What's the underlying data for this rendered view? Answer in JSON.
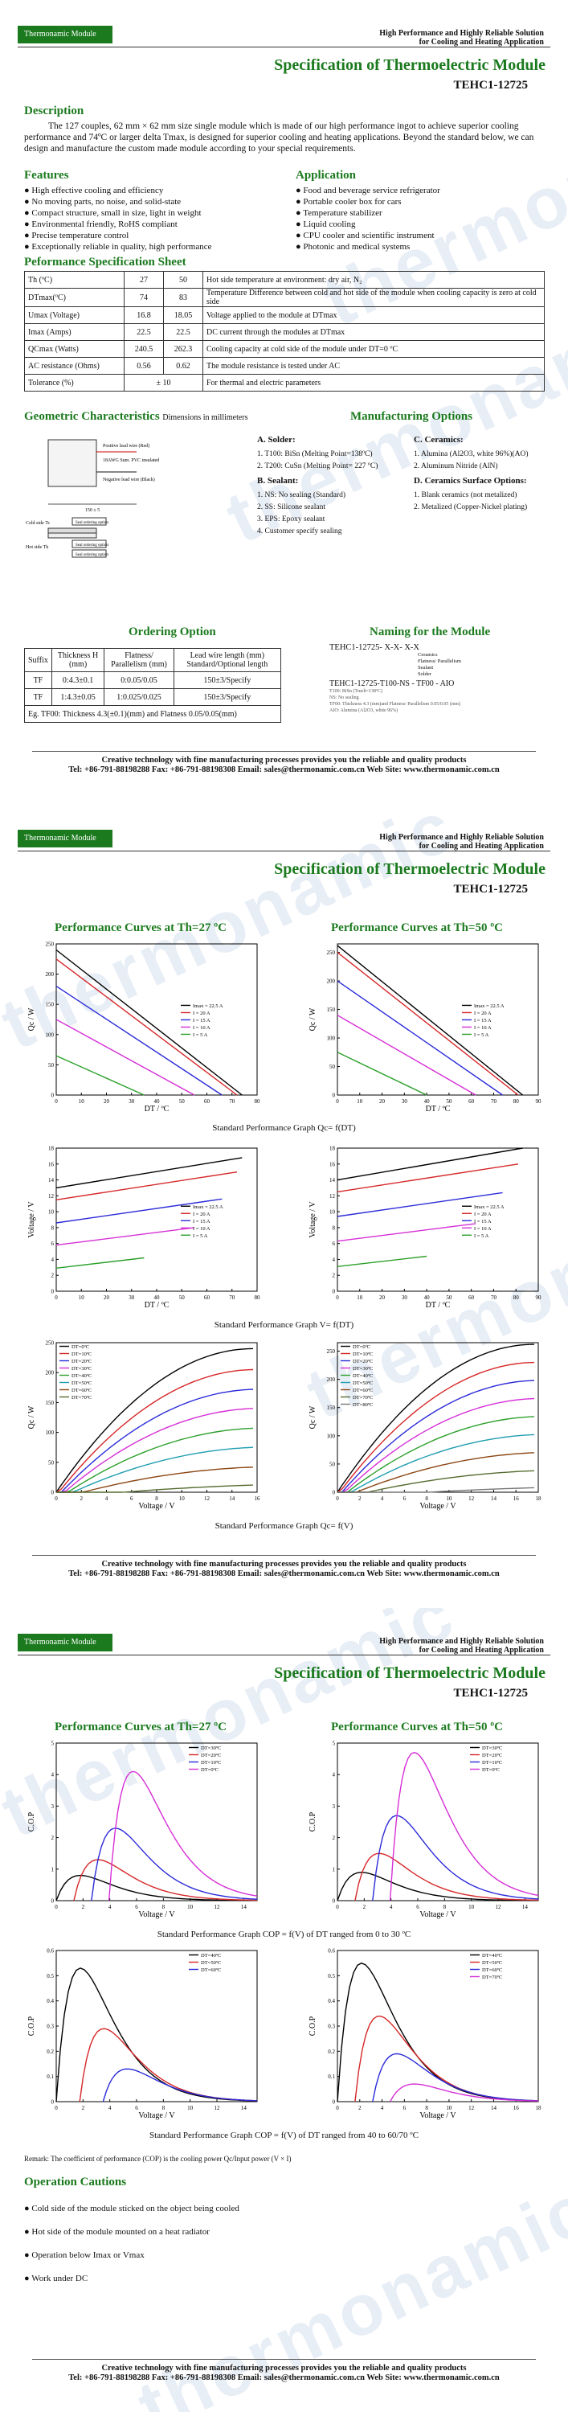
{
  "header": {
    "logo": "Thermonamic Module",
    "hp_line1": "High Performance and Highly Reliable Solution",
    "hp_line2": "for Cooling and Heating Application",
    "title": "Specification of Thermoelectric Module",
    "model": "TEHC1-12725",
    "watermark": "thermonamic"
  },
  "description": {
    "heading": "Description",
    "text": "The 127 couples, 62 mm × 62 mm size single module which is made of our high performance ingot to achieve superior cooling performance and 74ºC or larger delta Tmax, is designed for superior cooling and heating applications. Beyond the standard below, we can design and manufacture the custom made module according to your special requirements."
  },
  "features": {
    "heading": "Features",
    "items": [
      "High effective cooling and efficiency",
      "No moving parts, no noise, and solid-state",
      "Compact structure, small in size, light in weight",
      "Environmental friendly, RoHS compliant",
      "Precise temperature control",
      "Exceptionally reliable in quality, high performance"
    ]
  },
  "application": {
    "heading": "Application",
    "items": [
      "Food and beverage service refrigerator",
      "Portable cooler box for cars",
      "Temperature stabilizer",
      "Liquid cooling",
      "CPU cooler and scientific instrument",
      "Photonic and medical systems"
    ]
  },
  "perf_table": {
    "heading": "Peformance Specification Sheet",
    "rows": [
      [
        "Th (ºC)",
        "27",
        "50",
        "Hot side temperature at environment: dry air, N₂"
      ],
      [
        "DTmax(ºC)",
        "74",
        "83",
        "Temperature Difference between cold and hot side of the module when cooling capacity is zero at cold side"
      ],
      [
        "Umax (Voltage)",
        "16.8",
        "18.05",
        "Voltage applied to the module at DTmax"
      ],
      [
        "Imax (Amps)",
        "22.5",
        "22.5",
        "DC current through the modules at DTmax"
      ],
      [
        "QCmax (Watts)",
        "240.5",
        "262.3",
        "Cooling capacity at cold side of the module under DT=0 ºC"
      ],
      [
        "AC resistance (Ohms)",
        "0.56",
        "0.62",
        "The module resistance is tested under AC"
      ],
      [
        "Tolerance (%)",
        "± 10",
        "",
        "For thermal and electric parameters"
      ]
    ]
  },
  "geometry": {
    "heading": "Geometric Characteristics",
    "sub": "Dimensions in millimeters",
    "labels": [
      "Positive lead wire (Red)",
      "18AWG Sum. PVC insulated",
      "Negative lead wire (Black)",
      "150 ± 5",
      "Cold side Tc",
      "Hot side Th",
      "Seal ordering option"
    ]
  },
  "manufacturing": {
    "heading": "Manufacturing Options",
    "solder_head": "A. Solder:",
    "solder": [
      "1. T100: BiSn (Melting Point=138ºC)",
      "2. T200: CuSn (Melting Point= 227 ºC)"
    ],
    "sealant_head": "B. Sealant:",
    "sealant": [
      "1. NS: No sealing (Standard)",
      "2. SS: Silicone sealant",
      "3. EPS: Epoxy sealant",
      "4. Customer specify sealing"
    ],
    "ceramic_head": "C. Ceramics:",
    "ceramic": [
      "1. Alumina (Al2O3, white 96%)(AO)",
      "2. Aluminum Nitride (AlN)"
    ],
    "surface_head": "D. Ceramics Surface Options:",
    "surface": [
      "1. Blank ceramics (not metalized)",
      "2. Metalized (Copper-Nickel plating)"
    ]
  },
  "ordering": {
    "heading": "Ordering Option",
    "cols": [
      "Suffix",
      "Thickness H (mm)",
      "Flatness/ Parallelism (mm)",
      "Lead wire length (mm) Standard/Optional length"
    ],
    "rows": [
      [
        "TF",
        "0:4.3±0.1",
        "0:0.05/0.05",
        "150±3/Specify"
      ],
      [
        "TF",
        "1:4.3±0.05",
        "1:0.025/0.025",
        "150±3/Specify"
      ]
    ],
    "note": "Eg. TF00: Thickness 4.3(±0.1)(mm) and Flatness 0.05/0.05(mm)"
  },
  "naming": {
    "heading": "Naming for the Module",
    "code": "TEHC1-12725- X-X- X-X",
    "parts": [
      "Ceramics",
      "Flatness/ Parallelism",
      "Sealant",
      "Solder"
    ],
    "example": "TEHC1-12725-T100-NS - TF00 - AIO",
    "ex_lines": [
      "T100: BiSn (Tmelt=138ºC)",
      "NS: No sealing",
      "TF00: Thickness 4.3 (mm)and Flatness/ Parallelism 0.05/0.05 (mm)",
      "AIO: Alumina (Al2O3, white 96%)"
    ]
  },
  "footer": {
    "line1": "Creative technology with fine manufacturing processes provides you the reliable and quality products",
    "line2": "Tel: +86-791-88198288    Fax: +86-791-88198308    Email: sales@thermonamic.com.cn    Web Site: www.thermonamic.com.cn"
  },
  "page2": {
    "title_left": "Performance Curves at Th=27 ºC",
    "title_right": "Performance Curves at Th=50 ºC",
    "cap1": "Standard Performance Graph Qc= f(DT)",
    "cap2": "Standard Performance Graph V= f(DT)",
    "cap3": "Standard Performance Graph Qc= f(V)"
  },
  "page3": {
    "title_left": "Performance Curves at Th=27 ºC",
    "title_right": "Performance Curves at Th=50 ºC",
    "cap1": "Standard Performance Graph COP = f(V) of DT ranged from 0 to 30 ºC",
    "cap2": "Standard Performance Graph COP = f(V) of DT ranged from 40 to 60/70 ºC",
    "remark": "Remark: The coefficient of performance (COP) is the cooling power Qc/Input power (V × I)",
    "cautions_heading": "Operation Cautions",
    "cautions": [
      "Cold side of the module sticked on the object being cooled",
      "Hot side of the module mounted on a heat radiator",
      "Operation below Imax or Vmax",
      "Work under DC"
    ]
  },
  "chart_data": [
    {
      "type": "line",
      "title": "Qc vs DT, Th=27",
      "xlabel": "DT / ºC",
      "ylabel": "Qc / W",
      "xlim": [
        0,
        80
      ],
      "ylim": [
        0,
        250
      ],
      "series": [
        {
          "name": "Imax = 22.5 A",
          "x": [
            0,
            74
          ],
          "values": [
            240,
            0
          ]
        },
        {
          "name": "I = 20 A",
          "x": [
            0,
            72
          ],
          "values": [
            225,
            0
          ]
        },
        {
          "name": "I = 15 A",
          "x": [
            0,
            66
          ],
          "values": [
            180,
            0
          ]
        },
        {
          "name": "I = 10 A",
          "x": [
            0,
            55
          ],
          "values": [
            125,
            0
          ]
        },
        {
          "name": "I = 5 A",
          "x": [
            0,
            35
          ],
          "values": [
            65,
            0
          ]
        }
      ]
    },
    {
      "type": "line",
      "title": "Qc vs DT, Th=50",
      "xlabel": "DT / ºC",
      "ylabel": "Qc / W",
      "xlim": [
        0,
        90
      ],
      "ylim": [
        0,
        265
      ],
      "series": [
        {
          "name": "Imax = 22.5 A",
          "x": [
            0,
            83
          ],
          "values": [
            262,
            0
          ]
        },
        {
          "name": "I = 20 A",
          "x": [
            0,
            81
          ],
          "values": [
            250,
            0
          ]
        },
        {
          "name": "I = 15 A",
          "x": [
            0,
            74
          ],
          "values": [
            200,
            0
          ]
        },
        {
          "name": "I = 10 A",
          "x": [
            0,
            62
          ],
          "values": [
            140,
            0
          ]
        },
        {
          "name": "I = 5 A",
          "x": [
            0,
            40
          ],
          "values": [
            75,
            0
          ]
        }
      ]
    },
    {
      "type": "line",
      "title": "V vs DT, Th=27",
      "xlabel": "DT / ºC",
      "ylabel": "Voltage / V",
      "xlim": [
        0,
        80
      ],
      "ylim": [
        0,
        18
      ],
      "series": [
        {
          "name": "Imax = 22.5 A",
          "x": [
            0,
            74
          ],
          "values": [
            13,
            16.8
          ]
        },
        {
          "name": "I = 20 A",
          "x": [
            0,
            72
          ],
          "values": [
            11.5,
            15
          ]
        },
        {
          "name": "I = 15 A",
          "x": [
            0,
            66
          ],
          "values": [
            8.6,
            11.6
          ]
        },
        {
          "name": "I = 10 A",
          "x": [
            0,
            55
          ],
          "values": [
            5.8,
            8
          ]
        },
        {
          "name": "I = 5 A",
          "x": [
            0,
            35
          ],
          "values": [
            2.9,
            4.2
          ]
        }
      ]
    },
    {
      "type": "line",
      "title": "V vs DT, Th=50",
      "xlabel": "DT / ºC",
      "ylabel": "Voltage / V",
      "xlim": [
        0,
        90
      ],
      "ylim": [
        0,
        18
      ],
      "series": [
        {
          "name": "Imax = 22.5 A",
          "x": [
            0,
            83
          ],
          "values": [
            14,
            18
          ]
        },
        {
          "name": "I = 20 A",
          "x": [
            0,
            81
          ],
          "values": [
            12.5,
            16
          ]
        },
        {
          "name": "I = 15 A",
          "x": [
            0,
            74
          ],
          "values": [
            9.4,
            12.4
          ]
        },
        {
          "name": "I = 10 A",
          "x": [
            0,
            62
          ],
          "values": [
            6.3,
            8.5
          ]
        },
        {
          "name": "I = 5 A",
          "x": [
            0,
            40
          ],
          "values": [
            3.1,
            4.4
          ]
        }
      ]
    },
    {
      "type": "line",
      "title": "Qc vs V, Th=27",
      "xlabel": "Voltage / V",
      "ylabel": "Qc / W",
      "xlim": [
        0,
        16
      ],
      "ylim": [
        0,
        250
      ],
      "series": [
        {
          "name": "DT=0ºC",
          "peak": 240
        },
        {
          "name": "DT=10ºC",
          "peak": 205
        },
        {
          "name": "DT=20ºC",
          "peak": 172
        },
        {
          "name": "DT=30ºC",
          "peak": 140
        },
        {
          "name": "DT=40ºC",
          "peak": 107
        },
        {
          "name": "DT=50ºC",
          "peak": 75
        },
        {
          "name": "DT=60ºC",
          "peak": 42
        },
        {
          "name": "DT=70ºC",
          "peak": 12
        }
      ]
    },
    {
      "type": "line",
      "title": "Qc vs V, Th=50",
      "xlabel": "Voltage / V",
      "ylabel": "Qc / W",
      "xlim": [
        0,
        18
      ],
      "ylim": [
        0,
        265
      ],
      "series": [
        {
          "name": "DT=0ºC",
          "peak": 262
        },
        {
          "name": "DT=10ºC",
          "peak": 230
        },
        {
          "name": "DT=20ºC",
          "peak": 198
        },
        {
          "name": "DT=30ºC",
          "peak": 166
        },
        {
          "name": "DT=40ºC",
          "peak": 134
        },
        {
          "name": "DT=50ºC",
          "peak": 102
        },
        {
          "name": "DT=60ºC",
          "peak": 70
        },
        {
          "name": "DT=70ºC",
          "peak": 38
        },
        {
          "name": "DT=80ºC",
          "peak": 8
        }
      ]
    },
    {
      "type": "line",
      "title": "COP vs V DT 0-30, Th=27",
      "xlabel": "Voltage / V",
      "ylabel": "C.O.P",
      "xlim": [
        0,
        15
      ],
      "ylim": [
        0,
        5
      ],
      "series": [
        {
          "name": "DT=30ºC",
          "peak": 0.8
        },
        {
          "name": "DT=20ºC",
          "peak": 1.3
        },
        {
          "name": "DT=10ºC",
          "peak": 2.3
        },
        {
          "name": "DT=0ºC",
          "peak": 4.1
        }
      ]
    },
    {
      "type": "line",
      "title": "COP vs V DT 0-30, Th=50",
      "xlabel": "Voltage / V",
      "ylabel": "C.O.P",
      "xlim": [
        0,
        15
      ],
      "ylim": [
        0,
        5
      ],
      "series": [
        {
          "name": "DT=30ºC",
          "peak": 0.9
        },
        {
          "name": "DT=20ºC",
          "peak": 1.5
        },
        {
          "name": "DT=10ºC",
          "peak": 2.7
        },
        {
          "name": "DT=0ºC",
          "peak": 4.7
        }
      ]
    },
    {
      "type": "line",
      "title": "COP vs V DT 40-60, Th=27",
      "xlabel": "Voltage / V",
      "ylabel": "C.O.P",
      "xlim": [
        0,
        15
      ],
      "ylim": [
        0,
        0.6
      ],
      "series": [
        {
          "name": "DT=40ºC",
          "peak": 0.53
        },
        {
          "name": "DT=50ºC",
          "peak": 0.29
        },
        {
          "name": "DT=60ºC",
          "peak": 0.13
        }
      ]
    },
    {
      "type": "line",
      "title": "COP vs V DT 40-70, Th=50",
      "xlabel": "Voltage / V",
      "ylabel": "C.O.P",
      "xlim": [
        0,
        18
      ],
      "ylim": [
        0,
        0.6
      ],
      "series": [
        {
          "name": "DT=40ºC",
          "peak": 0.55
        },
        {
          "name": "DT=50ºC",
          "peak": 0.34
        },
        {
          "name": "DT=60ºC",
          "peak": 0.19
        },
        {
          "name": "DT=70ºC",
          "peak": 0.07
        }
      ]
    }
  ]
}
